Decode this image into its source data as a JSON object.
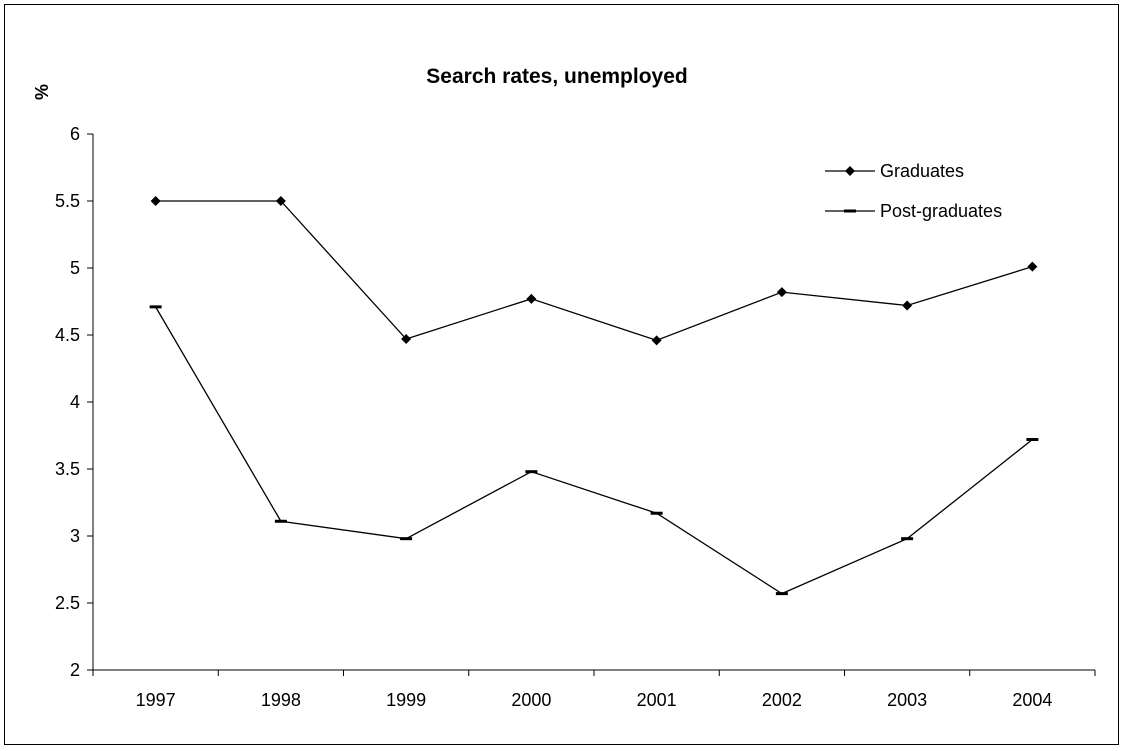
{
  "chart_data": {
    "type": "line",
    "title": "Search rates, unemployed",
    "ylabel": "%",
    "xlabel": "",
    "categories": [
      "1997",
      "1998",
      "1999",
      "2000",
      "2001",
      "2002",
      "2003",
      "2004"
    ],
    "ylim": [
      2,
      6
    ],
    "yticks": [
      "2",
      "2.5",
      "3",
      "3.5",
      "4",
      "4.5",
      "5",
      "5.5",
      "6"
    ],
    "grid": false,
    "legend_position": "top-right",
    "series": [
      {
        "name": "Graduates",
        "marker": "diamond",
        "color": "#000000",
        "values": [
          5.5,
          5.5,
          4.47,
          4.77,
          4.46,
          4.82,
          4.72,
          5.01
        ]
      },
      {
        "name": "Post-graduates",
        "marker": "dash",
        "color": "#000000",
        "values": [
          4.71,
          3.11,
          2.98,
          3.48,
          3.17,
          2.57,
          2.98,
          3.72
        ]
      }
    ]
  }
}
